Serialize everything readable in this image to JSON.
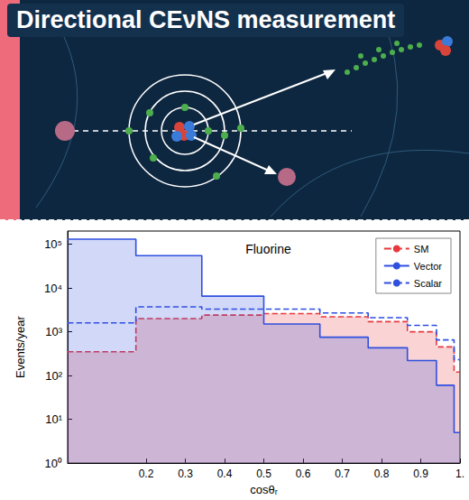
{
  "header": {
    "title": "Directional CEνNS measurement"
  },
  "chart_data": {
    "type": "histogram",
    "title": "Fluorine",
    "x_label": "cosθᵣ",
    "y_label": "Events/year",
    "bins": [
      0,
      0.174,
      0.342,
      0.5,
      0.643,
      0.766,
      0.866,
      0.94,
      0.985,
      1
    ],
    "series": [
      {
        "name": "SM",
        "color": "#e8383d",
        "line_style": "dashed",
        "values": [
          350,
          2000,
          2400,
          2600,
          2200,
          1700,
          1000,
          450,
          120
        ]
      },
      {
        "name": "Vector",
        "color": "#2f4fe0",
        "line_style": "solid",
        "values": [
          130000,
          55000,
          6500,
          1500,
          750,
          430,
          220,
          60,
          5
        ]
      },
      {
        "name": "Scalar",
        "color": "#2f4fe0",
        "line_style": "dashed",
        "values": [
          1600,
          3700,
          3300,
          3300,
          2700,
          2100,
          1400,
          650,
          230
        ]
      }
    ],
    "xlim": [
      0,
      1
    ],
    "xticks": [
      0.2,
      0.3,
      0.4,
      0.5,
      0.6,
      0.7,
      0.8,
      0.9,
      {
        "value": 1,
        "label": "1."
      }
    ],
    "ylim": [
      1,
      200000
    ],
    "yticks": [
      {
        "value": 1,
        "label": "10⁰"
      },
      {
        "value": 10,
        "label": "10¹"
      },
      {
        "value": 100,
        "label": "10²"
      },
      {
        "value": 1000,
        "label": "10³"
      },
      {
        "value": 10000,
        "label": "10⁴"
      },
      {
        "value": 100000,
        "label": "10⁵"
      }
    ],
    "log": "y",
    "grid": false,
    "legend": "upper right"
  }
}
